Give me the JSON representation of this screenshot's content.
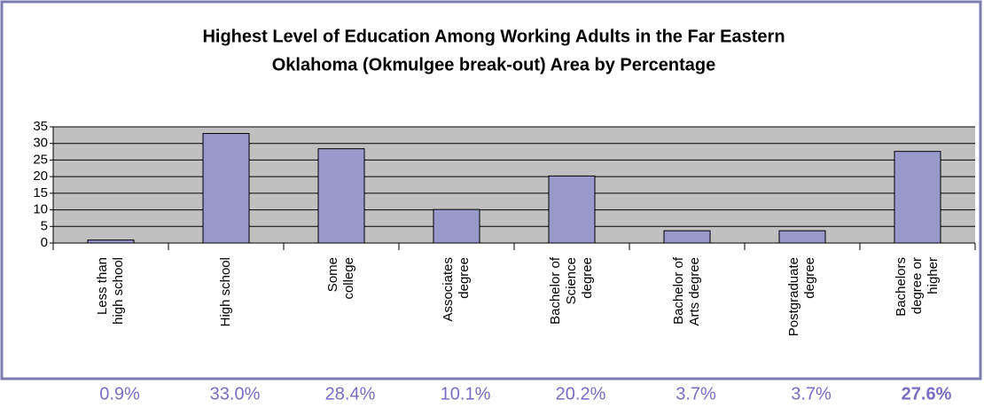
{
  "chart_data": {
    "type": "bar",
    "title": [
      "Highest Level of Education Among Working Adults in the Far Eastern",
      "Oklahoma (Okmulgee break-out) Area by Percentage"
    ],
    "categories": [
      [
        "Less than",
        "high school"
      ],
      [
        "High school"
      ],
      [
        "Some",
        "college"
      ],
      [
        "Associates",
        "degree"
      ],
      [
        "Bachelor of",
        "Science",
        "degree"
      ],
      [
        "Bachelor of",
        "Arts degree"
      ],
      [
        "Postgraduate",
        "degree"
      ],
      [
        "Bachelors",
        "degree or",
        "higher"
      ]
    ],
    "values": [
      0.9,
      33.0,
      28.4,
      10.1,
      20.2,
      3.7,
      3.7,
      27.6
    ],
    "value_labels": [
      "0.9%",
      "33.0%",
      "28.4%",
      "10.1%",
      "20.2%",
      "3.7%",
      "3.7%",
      "27.6%"
    ],
    "bold_value_label_index": 7,
    "color": "#9999cc",
    "ylim": [
      0,
      35
    ],
    "yticks": [
      0,
      5,
      10,
      15,
      20,
      25,
      30,
      35
    ],
    "grid": true
  }
}
